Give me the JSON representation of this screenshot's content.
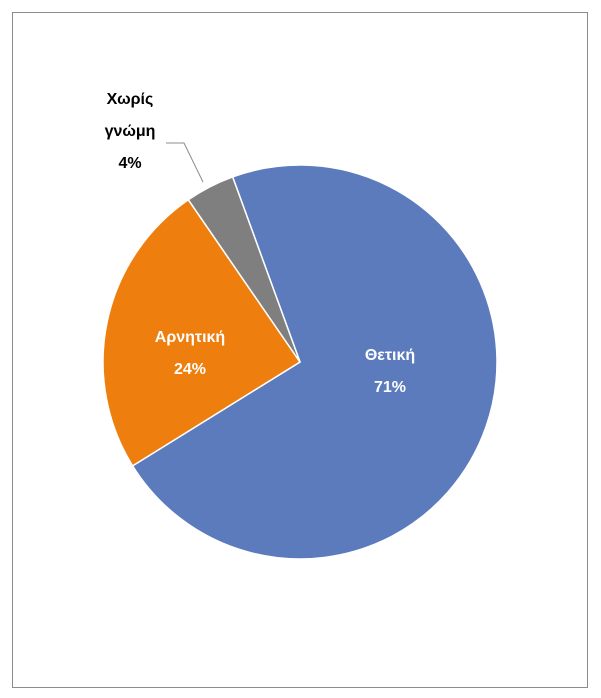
{
  "chart_data": {
    "type": "pie",
    "categories": [
      "Θετική",
      "Αρνητική",
      "Χωρίς γνώμη"
    ],
    "values": [
      71,
      24,
      4
    ],
    "value_labels": [
      "71%",
      "24%",
      "4%"
    ],
    "colors": [
      "#5b7bbd",
      "#ee7f0f",
      "#7f7f7f"
    ]
  }
}
